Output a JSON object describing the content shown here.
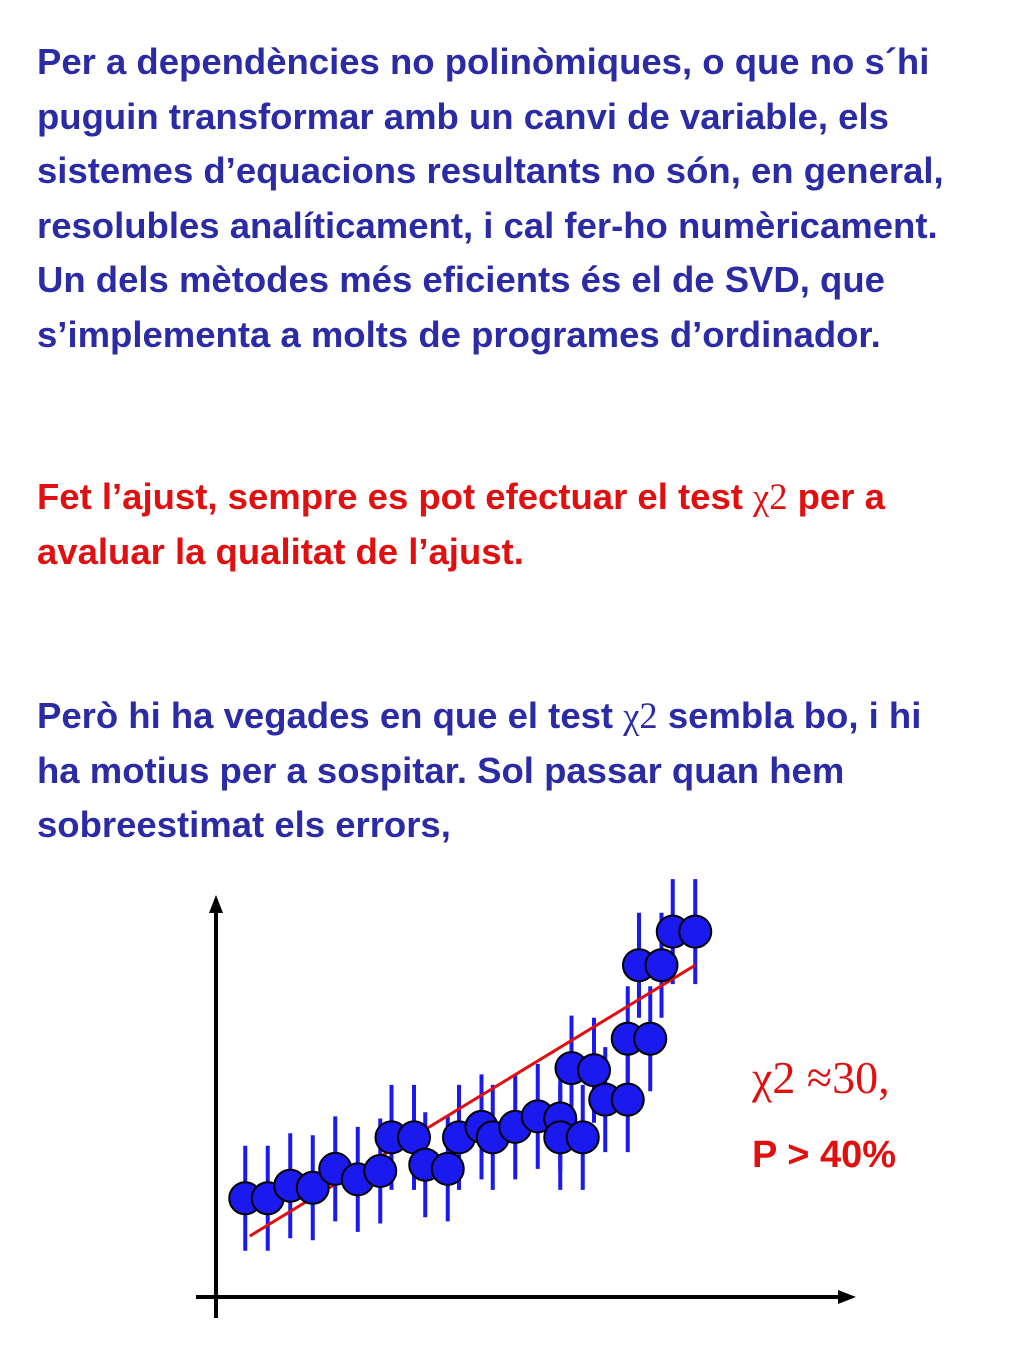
{
  "text": {
    "paragraph1": [
      "Per a dependències no polinòmiques, o que no s´hi",
      "puguin transformar amb un canvi de variable, els",
      "sistemes d’equacions resultants no són, en general,",
      "resolubles analíticament, i cal fer-ho numèricament.",
      "Un dels mètodes més eficients és el de SVD, que",
      "s’implementa a molts de programes d’ordinador."
    ],
    "paragraph2": {
      "line1_pre": "Fet l’ajust, sempre es pot efectuar el test ",
      "chi_symbol": "χ2",
      "line1_post": " per a",
      "line2": "avaluar la qualitat de l’ajust."
    },
    "paragraph3": {
      "line1_pre": "Però hi ha vegades en que el test ",
      "chi_symbol": "χ2",
      "line1_post": " sembla bo, i hi",
      "line2": "ha motius per a sospitar. Sol passar quan hem",
      "line3": "sobreestimat els errors,"
    }
  },
  "annotation": {
    "chi_value": "χ2 ≈30,",
    "p_value": "P > 40%"
  },
  "colors": {
    "text_blue": "#2b2ba6",
    "text_red": "#e01010",
    "marker_blue": "#1a1aee",
    "fit_line_red": "#e01010",
    "axis": "#000000"
  },
  "chart_data": {
    "type": "scatter",
    "title": "",
    "xlabel": "",
    "ylabel": "",
    "xlim": [
      0,
      28
    ],
    "ylim": [
      0,
      20
    ],
    "grid": false,
    "error_bar_half": 2.5,
    "points": [
      {
        "x": 1.3,
        "y": 4.7
      },
      {
        "x": 2.3,
        "y": 4.7
      },
      {
        "x": 3.3,
        "y": 5.3
      },
      {
        "x": 4.3,
        "y": 5.2
      },
      {
        "x": 5.3,
        "y": 6.1
      },
      {
        "x": 6.3,
        "y": 5.6
      },
      {
        "x": 7.3,
        "y": 6.0
      },
      {
        "x": 7.8,
        "y": 7.6
      },
      {
        "x": 8.8,
        "y": 7.6
      },
      {
        "x": 9.3,
        "y": 6.3
      },
      {
        "x": 10.3,
        "y": 6.1
      },
      {
        "x": 10.8,
        "y": 7.6
      },
      {
        "x": 11.8,
        "y": 8.1
      },
      {
        "x": 12.3,
        "y": 7.6
      },
      {
        "x": 13.3,
        "y": 8.1
      },
      {
        "x": 14.3,
        "y": 8.6
      },
      {
        "x": 15.3,
        "y": 8.5
      },
      {
        "x": 15.3,
        "y": 7.6
      },
      {
        "x": 16.3,
        "y": 7.6
      },
      {
        "x": 15.8,
        "y": 10.9
      },
      {
        "x": 16.8,
        "y": 10.8
      },
      {
        "x": 17.3,
        "y": 9.4
      },
      {
        "x": 18.3,
        "y": 9.4
      },
      {
        "x": 18.3,
        "y": 12.3
      },
      {
        "x": 19.3,
        "y": 12.3
      },
      {
        "x": 18.8,
        "y": 15.8
      },
      {
        "x": 19.8,
        "y": 15.8
      },
      {
        "x": 20.3,
        "y": 17.4
      },
      {
        "x": 21.3,
        "y": 17.4
      }
    ],
    "fit_line": {
      "x1": 1.5,
      "y1": 2.9,
      "x2": 21.3,
      "y2": 15.8
    }
  }
}
